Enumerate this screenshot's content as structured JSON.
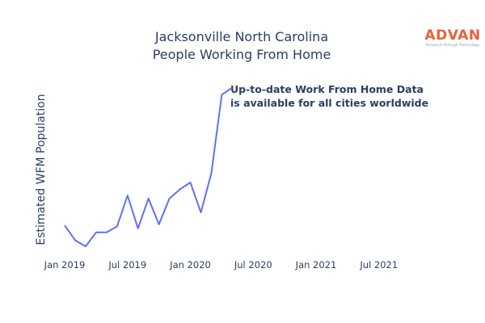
{
  "colors": {
    "line": "#636efa",
    "text": "#2a3f5f",
    "logo": "#e8603c"
  },
  "logo": {
    "name": "ADVAN",
    "tagline": "Research through Technology"
  },
  "annotation": {
    "line1": "Up-to-date Work From Home Data",
    "line2": "is available for all cities worldwide"
  },
  "chart_data": {
    "type": "line",
    "title_lines": [
      "Jacksonville North Carolina",
      "People Working From Home"
    ],
    "xlabel": "",
    "ylabel": "Estimated WFM Population",
    "x_ticks": [
      "Jan 2019",
      "Jul 2019",
      "Jan 2020",
      "Jul 2020",
      "Jan 2021",
      "Jul 2021"
    ],
    "x_tick_dates": [
      "2019-01",
      "2019-07",
      "2020-01",
      "2020-07",
      "2021-01",
      "2021-07"
    ],
    "xlim": [
      "2018-12",
      "2021-12"
    ],
    "y_ticks_shown": false,
    "grid": false,
    "series": [
      {
        "x": [
          "2019-01",
          "2019-02",
          "2019-03",
          "2019-04",
          "2019-05",
          "2019-06",
          "2019-07",
          "2019-08",
          "2019-09",
          "2019-10",
          "2019-11",
          "2019-12",
          "2020-01",
          "2020-02",
          "2020-03",
          "2020-04",
          "2020-05"
        ],
        "values": [
          25,
          10,
          4,
          18,
          18,
          24,
          55,
          22,
          52,
          26,
          52,
          61,
          68,
          38,
          77,
          156,
          163
        ]
      }
    ],
    "ylim": [
      0,
      170
    ]
  }
}
